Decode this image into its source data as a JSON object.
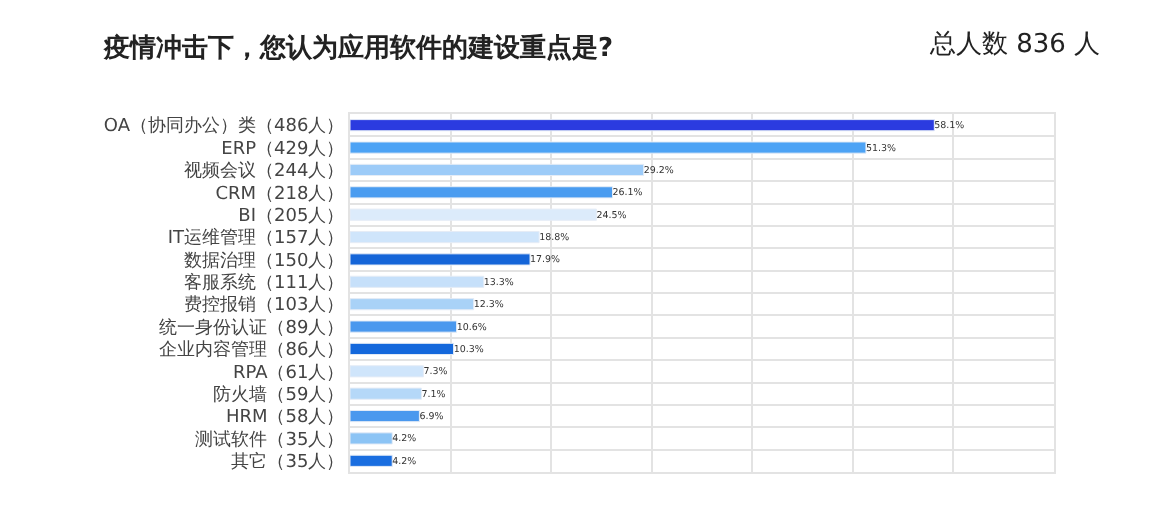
{
  "chart_data": {
    "type": "bar",
    "orientation": "horizontal",
    "title": "疫情冲击下，您认为应用软件的建设重点是?",
    "subtitle": "总人数 836 人",
    "categories": [
      "OA（协同办公）类（486人）",
      "ERP（429人）",
      "视频会议（244人）",
      "CRM（218人）",
      "BI（205人）",
      "IT运维管理（157人）",
      "数据治理（150人）",
      "客服系统（111人）",
      "费控报销（103人）",
      "统一身份认证（89人）",
      "企业内容管理（86人）",
      "RPA（61人）",
      "防火墙（59人）",
      "HRM（58人）",
      "测试软件（35人）",
      "其它（35人）"
    ],
    "values": [
      58.1,
      51.3,
      29.2,
      26.1,
      24.5,
      18.8,
      17.9,
      13.3,
      12.3,
      10.6,
      10.3,
      7.3,
      7.1,
      6.9,
      4.2,
      4.2
    ],
    "value_labels": [
      "58.1%",
      "51.3%",
      "29.2%",
      "26.1%",
      "24.5%",
      "18.8%",
      "17.9%",
      "13.3%",
      "12.3%",
      "10.6%",
      "10.3%",
      "7.3%",
      "7.1%",
      "6.9%",
      "4.2%",
      "4.2%"
    ],
    "colors": [
      "#2b3be0",
      "#4da3f5",
      "#9ccbf8",
      "#4a9cf0",
      "#dcebfb",
      "#cfe5fb",
      "#1565d8",
      "#c6e0fa",
      "#a9d2f7",
      "#4a98ee",
      "#1468dc",
      "#cfe5fb",
      "#b5d8f8",
      "#4a98ee",
      "#8cc4f5",
      "#1a6ee0"
    ],
    "xlim": [
      0,
      70
    ],
    "xticks": [
      {
        "value": 0,
        "label": null
      },
      {
        "value": 10,
        "label": null
      },
      {
        "value": 20,
        "label": null
      },
      {
        "value": 30,
        "label": null
      },
      {
        "value": 40,
        "label": null
      },
      {
        "value": 50,
        "label": null
      },
      {
        "value": 60,
        "label": null
      },
      {
        "value": 70,
        "label": null
      }
    ],
    "tick_labels": "y",
    "grid": true,
    "legend": false
  }
}
